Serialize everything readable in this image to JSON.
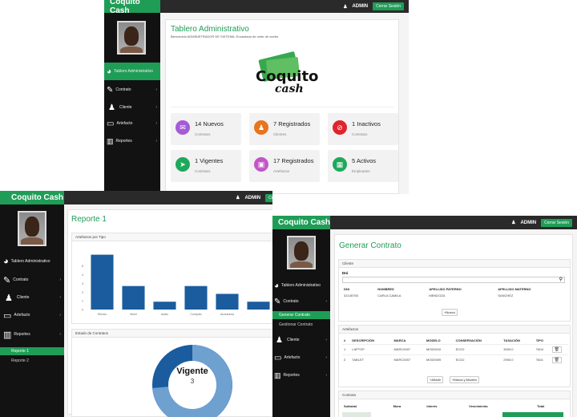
{
  "app_name": "Coquito Cash",
  "user": "ADMIN",
  "logout_label": "Cerrar Sesión",
  "logo": {
    "line1": "Coquito",
    "line2": "cash"
  },
  "sidebar": {
    "items": [
      {
        "label": "Tablero Administrativo",
        "icon": "dashboard-icon"
      },
      {
        "label": "Contrato",
        "icon": "edit-icon"
      },
      {
        "label": "Cliente",
        "icon": "person-icon"
      },
      {
        "label": "Artefacto",
        "icon": "monitor-icon"
      },
      {
        "label": "Reportes",
        "icon": "bar-chart-icon"
      }
    ],
    "report_subitems": [
      "Reporte 1",
      "Reporte 2"
    ],
    "contract_subitems": [
      "Generar Contrato",
      "Gestionar Contrato"
    ]
  },
  "dashboard": {
    "title": "Tablero Administrativo",
    "welcome": "Bienvenido ADMINISTRADOR DE SISTEMA: Encantado de verte de vuelta",
    "cards": [
      {
        "value": "14 Nuevos",
        "label": "Contratos",
        "color": "#a55bd6",
        "icon": "envelope-icon"
      },
      {
        "value": "7 Registrados",
        "label": "Clientes",
        "color": "#e8741c",
        "icon": "person-icon"
      },
      {
        "value": "1 Inactivos",
        "label": "Contratos",
        "color": "#e0242e",
        "icon": "ban-icon"
      },
      {
        "value": "1 Vigentes",
        "label": "Contratos",
        "color": "#1ea85b",
        "icon": "send-icon"
      },
      {
        "value": "17 Registrados",
        "label": "Artefactos",
        "color": "#c454c8",
        "icon": "box-icon"
      },
      {
        "value": "5 Activos",
        "label": "Empleados",
        "color": "#1ea85b",
        "icon": "building-icon"
      }
    ]
  },
  "report": {
    "title": "Reporte 1",
    "bar_panel_title": "Artefactos por Tipo",
    "donut_panel_title": "Estado de Contratos",
    "donut_label": "Vigente",
    "donut_value": "3"
  },
  "chart_data": {
    "type": "bar",
    "categories": [
      "Electro",
      "Móvil",
      "Audio",
      "Computo",
      "Accesorios",
      ""
    ],
    "values": [
      6.3,
      2.7,
      0.9,
      2.7,
      1.8,
      0.9
    ],
    "yticks": [
      "0",
      "1",
      "2",
      "3",
      "4",
      "5"
    ],
    "ylim": [
      0,
      7
    ],
    "color": "#1a5c9e"
  },
  "contract": {
    "title": "Generar Contrato",
    "client_section": "Cliente",
    "dni_label": "Dni",
    "client_headers": [
      "DNI",
      "NOMBRES",
      "APELLIDO PATERNO",
      "APELLIDO MATERNO"
    ],
    "client_row": [
      "32145755",
      "CARLA CAMILA",
      "MENDOZA",
      "SANCHEZ"
    ],
    "new_label": "Nuevo",
    "items_section": "Artefactos",
    "item_headers": [
      "#",
      "DESCRIPCIÓN",
      "MARCA",
      "MODELO",
      "CONSERVACIÓN",
      "TASACIÓN",
      "TIPO"
    ],
    "item_rows": [
      [
        "1",
        "LAPTOP",
        "MARC0007",
        "MOD0010",
        "ECO2",
        "3000.0",
        "TA04"
      ],
      [
        "2",
        "TABLET",
        "MARC0007",
        "MOD0009",
        "ECO2",
        "2900.0",
        "TA01"
      ]
    ],
    "add_label": "Añadir",
    "brand_model_label": "Marca y Modelo",
    "contract_section": "Contrato",
    "contract_headers": [
      "Subtotal",
      "Mora",
      "Interés",
      "Vencimiento",
      "Total"
    ]
  }
}
